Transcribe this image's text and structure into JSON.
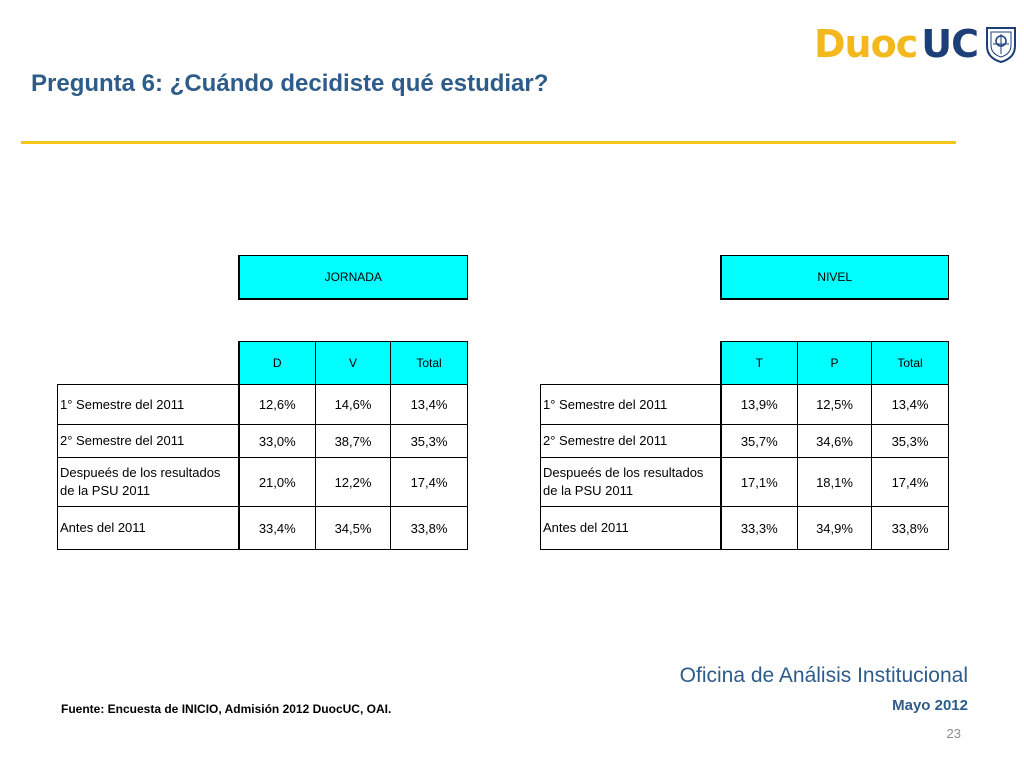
{
  "logo": {
    "part1": "Duoc",
    "part2": "UC"
  },
  "title": "Pregunta 6: ¿Cuándo decidiste qué estudiar?",
  "tables": {
    "jornada": {
      "header": "JORNADA",
      "columns": [
        "D",
        "V",
        "Total"
      ],
      "rows": [
        {
          "label": "1° Semestre del 2011",
          "values": [
            "12,6%",
            "14,6%",
            "13,4%"
          ]
        },
        {
          "label": "2° Semestre del 2011",
          "values": [
            "33,0%",
            "38,7%",
            "35,3%"
          ]
        },
        {
          "label": "Despueés de los resultados de la PSU 2011",
          "values": [
            "21,0%",
            "12,2%",
            "17,4%"
          ]
        },
        {
          "label": "Antes del 2011",
          "values": [
            "33,4%",
            "34,5%",
            "33,8%"
          ]
        }
      ]
    },
    "nivel": {
      "header": "NIVEL",
      "columns": [
        "T",
        "P",
        "Total"
      ],
      "rows": [
        {
          "label": "1° Semestre del 2011",
          "values": [
            "13,9%",
            "12,5%",
            "13,4%"
          ]
        },
        {
          "label": "2° Semestre del 2011",
          "values": [
            "35,7%",
            "34,6%",
            "35,3%"
          ]
        },
        {
          "label": "Despueés de los resultados de la PSU 2011",
          "values": [
            "17,1%",
            "18,1%",
            "17,4%"
          ]
        },
        {
          "label": "Antes del 2011",
          "values": [
            "33,3%",
            "34,9%",
            "33,8%"
          ]
        }
      ]
    }
  },
  "footer": {
    "source": "Fuente: Encuesta de INICIO, Admisión 2012 DuocUC, OAI.",
    "office": "Oficina de Análisis Institucional",
    "date": "Mayo 2012",
    "page": "23"
  },
  "colors": {
    "title": "#2e5c8a",
    "rule": "#f5c518",
    "header_fill": "#00ffff",
    "logo_gold": "#f2b81c",
    "logo_blue": "#1d3f78"
  }
}
